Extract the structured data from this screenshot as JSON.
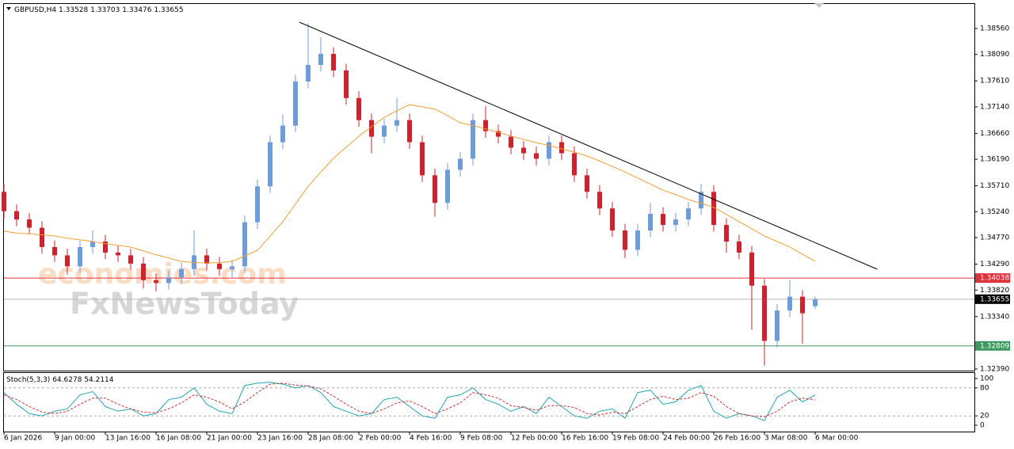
{
  "chart_data": [
    {
      "type": "candlestick",
      "title": "GBPUSD,H4",
      "header_values": [
        1.33528,
        1.33703,
        1.33476,
        1.33655
      ],
      "categories": [
        "6 Jan 2026",
        null,
        null,
        null,
        "9 Jan 00:00",
        null,
        null,
        null,
        "13 Jan 16:00",
        null,
        null,
        null,
        "16 Jan 08:00",
        null,
        null,
        null,
        "21 Jan 00:00",
        null,
        null,
        null,
        "23 Jan 16:00",
        null,
        null,
        null,
        "28 Jan 08:00",
        null,
        null,
        null,
        "2 Feb 00:00",
        null,
        null,
        null,
        "4 Feb 16:00",
        null,
        null,
        null,
        "9 Feb 08:00",
        null,
        null,
        null,
        "12 Feb 00:00",
        null,
        null,
        null,
        "16 Feb 16:00",
        null,
        null,
        null,
        "19 Feb 08:00",
        null,
        null,
        null,
        "24 Feb 00:00",
        null,
        null,
        null,
        "26 Feb 16:00",
        null,
        null,
        null,
        "3 Mar 08:00",
        null,
        null,
        null,
        "6 Mar 00:00"
      ],
      "open": [
        1.356,
        1.3525,
        1.351,
        1.3495,
        1.346,
        1.3445,
        1.3425,
        1.346,
        1.347,
        1.345,
        1.3445,
        1.343,
        1.34,
        1.3395,
        1.3405,
        1.342,
        1.3445,
        1.343,
        1.342,
        1.3425,
        1.3505,
        1.357,
        1.365,
        1.368,
        1.376,
        1.379,
        1.381,
        1.378,
        1.373,
        1.369,
        1.366,
        1.368,
        1.369,
        1.365,
        1.359,
        1.354,
        1.36,
        1.362,
        1.369,
        1.367,
        1.366,
        1.364,
        1.363,
        1.362,
        1.365,
        1.363,
        1.359,
        1.356,
        1.353,
        1.349,
        1.3455,
        1.349,
        1.352,
        1.35,
        1.351,
        1.353,
        1.356,
        1.35,
        1.347,
        1.345,
        1.339,
        1.329,
        1.3345,
        1.337,
        1.33528
      ],
      "high": [
        1.3575,
        1.3537,
        1.3522,
        1.3507,
        1.3472,
        1.3457,
        1.3472,
        1.349,
        1.3482,
        1.3462,
        1.3457,
        1.3442,
        1.3412,
        1.3417,
        1.3432,
        1.349,
        1.3457,
        1.3442,
        1.3437,
        1.3517,
        1.3582,
        1.3662,
        1.37,
        1.3772,
        1.3865,
        1.384,
        1.3822,
        1.3792,
        1.3742,
        1.3702,
        1.3692,
        1.373,
        1.3702,
        1.3662,
        1.3602,
        1.3612,
        1.3632,
        1.3702,
        1.3715,
        1.3682,
        1.3672,
        1.3652,
        1.3642,
        1.3662,
        1.3662,
        1.3642,
        1.3602,
        1.3572,
        1.3542,
        1.3502,
        1.3502,
        1.354,
        1.3532,
        1.3522,
        1.3542,
        1.3575,
        1.3572,
        1.3512,
        1.3482,
        1.3462,
        1.3402,
        1.3357,
        1.34,
        1.3382,
        1.33703
      ],
      "low": [
        1.3513,
        1.3498,
        1.3483,
        1.3448,
        1.3433,
        1.341,
        1.3413,
        1.3448,
        1.3438,
        1.3433,
        1.3418,
        1.3385,
        1.338,
        1.3383,
        1.3393,
        1.3408,
        1.3418,
        1.3408,
        1.3405,
        1.3413,
        1.3493,
        1.3558,
        1.3638,
        1.3668,
        1.3748,
        1.3778,
        1.3768,
        1.3718,
        1.3678,
        1.363,
        1.3648,
        1.3668,
        1.3638,
        1.3578,
        1.3515,
        1.3528,
        1.3588,
        1.3608,
        1.3658,
        1.3648,
        1.3628,
        1.3618,
        1.3608,
        1.3608,
        1.3618,
        1.3578,
        1.3548,
        1.3518,
        1.3478,
        1.344,
        1.3443,
        1.3478,
        1.3488,
        1.3488,
        1.3498,
        1.3518,
        1.3488,
        1.345,
        1.3438,
        1.331,
        1.3245,
        1.3278,
        1.3333,
        1.3285,
        1.33476
      ],
      "close": [
        1.3525,
        1.351,
        1.3495,
        1.346,
        1.3445,
        1.3425,
        1.346,
        1.347,
        1.345,
        1.3445,
        1.343,
        1.34,
        1.3395,
        1.3405,
        1.342,
        1.3445,
        1.343,
        1.342,
        1.3425,
        1.3505,
        1.357,
        1.365,
        1.368,
        1.376,
        1.379,
        1.381,
        1.378,
        1.373,
        1.369,
        1.366,
        1.368,
        1.369,
        1.365,
        1.359,
        1.354,
        1.36,
        1.362,
        1.369,
        1.367,
        1.366,
        1.364,
        1.363,
        1.362,
        1.365,
        1.363,
        1.359,
        1.356,
        1.353,
        1.349,
        1.3455,
        1.349,
        1.352,
        1.35,
        1.351,
        1.353,
        1.356,
        1.35,
        1.347,
        1.345,
        1.339,
        1.329,
        1.3345,
        1.337,
        1.334,
        1.33655
      ],
      "up_color": "#6e9bd9",
      "down_color": "#d3202c",
      "ma": {
        "color": "#f0a030",
        "values": [
          1.3489,
          1.3485,
          1.3484,
          1.3482,
          1.348,
          1.3476,
          1.3473,
          1.347,
          1.3466,
          1.3463,
          1.346,
          1.3453,
          1.3446,
          1.344,
          1.3434,
          1.3432,
          1.3431,
          1.3432,
          1.3434,
          1.3444,
          1.3454,
          1.348,
          1.3506,
          1.3538,
          1.357,
          1.3596,
          1.3621,
          1.3641,
          1.3661,
          1.3678,
          1.3695,
          1.3707,
          1.3718,
          1.3714,
          1.371,
          1.3698,
          1.3685,
          1.368,
          1.3674,
          1.3668,
          1.3661,
          1.3655,
          1.3649,
          1.3644,
          1.3638,
          1.3632,
          1.3625,
          1.3616,
          1.3606,
          1.3596,
          1.3585,
          1.3574,
          1.3563,
          1.3555,
          1.3546,
          1.3539,
          1.3532,
          1.3519,
          1.3506,
          1.3493,
          1.348,
          1.347,
          1.346,
          1.3447,
          1.3434
        ]
      },
      "trendline": {
        "color": "#000000",
        "x": [
          23.3,
          68.9
        ],
        "y": [
          1.38675,
          1.34198
        ]
      },
      "levels": [
        {
          "value": 1.34038,
          "color": "#e0303a"
        },
        {
          "value": 1.33655,
          "color": "#b8b8b8",
          "label_color": "#000000"
        },
        {
          "value": 1.32809,
          "color": "#3d9a5e"
        }
      ],
      "ylim": [
        1.32361,
        1.39019
      ],
      "yticks": [
        {
          "value": 1.3856,
          "label": "1.38560"
        },
        {
          "value": 1.3809,
          "label": "1.38090"
        },
        {
          "value": 1.3761,
          "label": "1.37610"
        },
        {
          "value": 1.3714,
          "label": "1.37140"
        },
        {
          "value": 1.3666,
          "label": "1.36660"
        },
        {
          "value": 1.3619,
          "label": "1.36190"
        },
        {
          "value": 1.3571,
          "label": "1.35710"
        },
        {
          "value": 1.3524,
          "label": "1.35240"
        },
        {
          "value": 1.3477,
          "label": "1.34770"
        },
        {
          "value": 1.3429,
          "label": "1.34290"
        },
        {
          "value": 1.3382,
          "label": "1.33820"
        },
        {
          "value": 1.3334,
          "label": "1.33340"
        },
        {
          "value": 1.3239,
          "label": "1.32390"
        }
      ],
      "watermark": [
        "economies.com",
        "FxNewsToday"
      ]
    },
    {
      "type": "line",
      "title": "Stoch(5,3,3)",
      "header_values": [
        64.6278,
        54.2114
      ],
      "series": [
        {
          "color": "#1fa6b4",
          "values": [
            70,
            45,
            25,
            20,
            30,
            35,
            65,
            72,
            40,
            30,
            35,
            20,
            25,
            55,
            60,
            80,
            45,
            30,
            25,
            85,
            90,
            92,
            88,
            80,
            85,
            70,
            40,
            30,
            20,
            25,
            55,
            60,
            40,
            20,
            15,
            60,
            65,
            80,
            55,
            45,
            30,
            40,
            25,
            60,
            40,
            20,
            15,
            30,
            35,
            15,
            70,
            75,
            45,
            50,
            75,
            85,
            30,
            15,
            25,
            20,
            10,
            60,
            75,
            50,
            64.6278
          ]
        },
        {
          "color": "#d03030",
          "dashed": true,
          "values": [
            65,
            55,
            40,
            28,
            25,
            30,
            45,
            58,
            58,
            45,
            35,
            28,
            27,
            35,
            48,
            65,
            60,
            50,
            35,
            50,
            70,
            88,
            90,
            86,
            84,
            78,
            62,
            45,
            30,
            25,
            35,
            48,
            52,
            40,
            25,
            35,
            48,
            70,
            65,
            58,
            42,
            38,
            32,
            42,
            42,
            38,
            25,
            22,
            28,
            25,
            40,
            55,
            62,
            55,
            58,
            70,
            62,
            40,
            25,
            20,
            18,
            30,
            50,
            58,
            54.2114
          ]
        }
      ],
      "levels": [
        20,
        80
      ],
      "ylim": [
        -13.6,
        113.6
      ],
      "yticks": [
        0,
        20,
        80,
        100
      ]
    }
  ]
}
